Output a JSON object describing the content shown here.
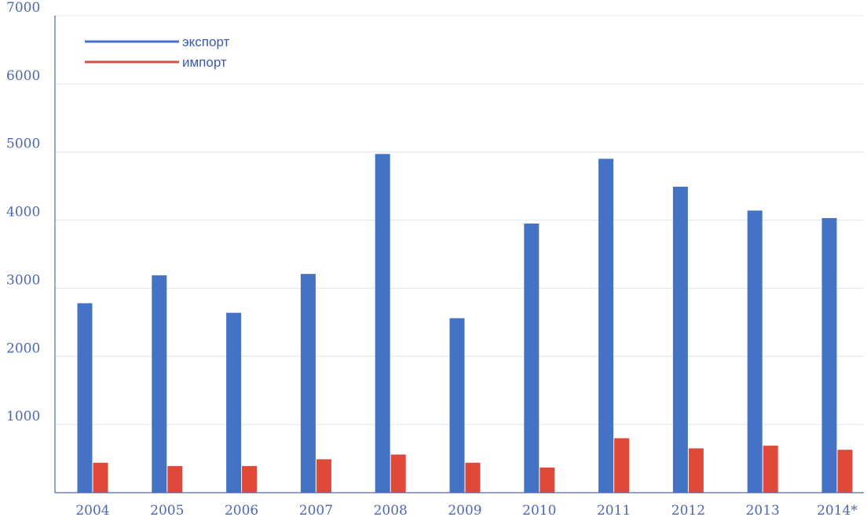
{
  "chart_data": {
    "type": "bar",
    "categories": [
      "2004",
      "2005",
      "2006",
      "2007",
      "2008",
      "2009",
      "2010",
      "2011",
      "2012",
      "2013",
      "2014*"
    ],
    "series": [
      {
        "name": "экспорт",
        "color": "#4472c4",
        "values": [
          2780,
          3190,
          2640,
          3210,
          4970,
          2560,
          3950,
          4900,
          4490,
          4140,
          4030
        ]
      },
      {
        "name": "импорт",
        "color": "#e0493a",
        "values": [
          440,
          390,
          390,
          490,
          560,
          440,
          370,
          800,
          650,
          690,
          630
        ]
      }
    ],
    "ylim": [
      0,
      7000
    ],
    "yticks": [
      "1000",
      "2000",
      "3000",
      "4000",
      "5000",
      "6000",
      "7000"
    ],
    "grid": true,
    "legend_position": "top-left",
    "title": "",
    "xlabel": "",
    "ylabel": ""
  }
}
